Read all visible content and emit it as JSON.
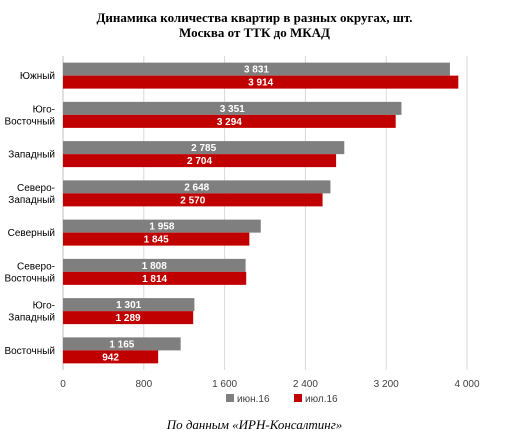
{
  "title_line1": "Динамика количества квартир в разных округах, шт.",
  "title_line2": "Москва от ТТК до МКАД",
  "source": "По данным «ИРН-Консалтинг»",
  "chart_data": {
    "type": "bar",
    "orientation": "horizontal",
    "categories": [
      [
        "Южный"
      ],
      [
        "Юго-",
        "Восточный"
      ],
      [
        "Западный"
      ],
      [
        "Северо-",
        "Западный"
      ],
      [
        "Северный"
      ],
      [
        "Северо-",
        "Восточный"
      ],
      [
        "Юго-",
        "Западный"
      ],
      [
        "Восточный"
      ]
    ],
    "series": [
      {
        "name": "июн.16",
        "color": "#7f7f7f",
        "values": [
          3831,
          3351,
          2785,
          2648,
          1958,
          1808,
          1301,
          1165
        ],
        "labels": [
          "3 831",
          "3 351",
          "2 785",
          "2 648",
          "1 958",
          "1 808",
          "1 301",
          "1 165"
        ]
      },
      {
        "name": "июл.16",
        "color": "#c00000",
        "values": [
          3914,
          3294,
          2704,
          2570,
          1845,
          1814,
          1289,
          942
        ],
        "labels": [
          "3 914",
          "3 294",
          "2 704",
          "2 570",
          "1 845",
          "1 814",
          "1 289",
          "942"
        ]
      }
    ],
    "xlim": [
      0,
      4000
    ],
    "xticks": [
      0,
      800,
      1600,
      2400,
      3200,
      4000
    ],
    "xtick_labels": [
      "0",
      "800",
      "1 600",
      "2 400",
      "3 200",
      "4 000"
    ],
    "grid": true,
    "legend_position": "bottom"
  }
}
